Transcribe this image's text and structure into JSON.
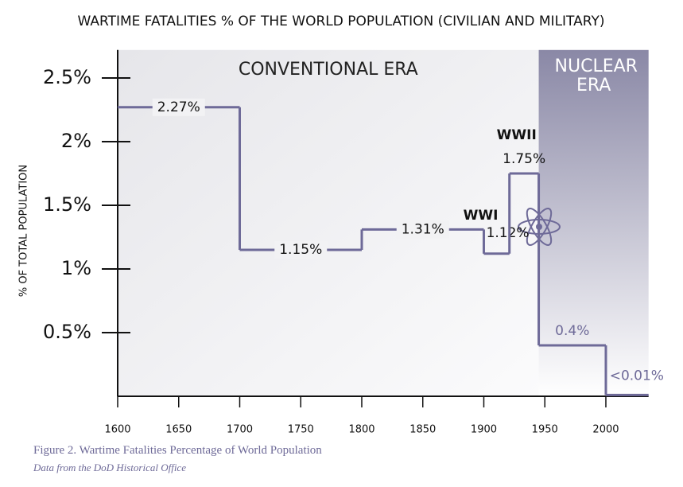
{
  "chart_data": {
    "type": "step",
    "title": "WARTIME FATALITIES % OF THE WORLD POPULATION (CIVILIAN AND MILITARY)",
    "y_label": "% OF TOTAL POPULATION",
    "x": [
      1600,
      1700,
      1800,
      1900,
      1921,
      1945,
      2000
    ],
    "values": [
      2.27,
      1.15,
      1.31,
      1.12,
      1.75,
      0.4,
      0.01
    ],
    "value_labels": [
      "2.27%",
      "1.15%",
      "1.31%",
      "1.12%",
      "1.75%",
      "0.4%",
      "<0.01%"
    ],
    "color": "#6e6a98",
    "xlim": [
      1600,
      2035
    ],
    "xticks": [
      1600,
      1650,
      1700,
      1750,
      1800,
      1850,
      1900,
      1950,
      2000
    ],
    "ylim": [
      0,
      2.72
    ],
    "yticks": [
      {
        "value": 0.5,
        "label": "0.5%"
      },
      {
        "value": 1,
        "label": "1%"
      },
      {
        "value": 1.5,
        "label": "1.5%"
      },
      {
        "value": 2,
        "label": "2%"
      },
      {
        "value": 2.5,
        "label": "2.5%"
      }
    ],
    "regions": [
      {
        "name": "CONVENTIONAL ERA",
        "from": 1600,
        "to": 1945
      },
      {
        "name": "NUCLEAR ERA",
        "from": 1945,
        "to": 2035
      }
    ],
    "annotations": [
      {
        "text": "WWI",
        "x": 1900,
        "y": 1.12
      },
      {
        "text": "WWII",
        "x": 1921,
        "y": 1.75
      }
    ],
    "caption": "Figure 2. Wartime Fatalities Percentage of World Population",
    "source": "Data from the DoD Historical Office"
  }
}
